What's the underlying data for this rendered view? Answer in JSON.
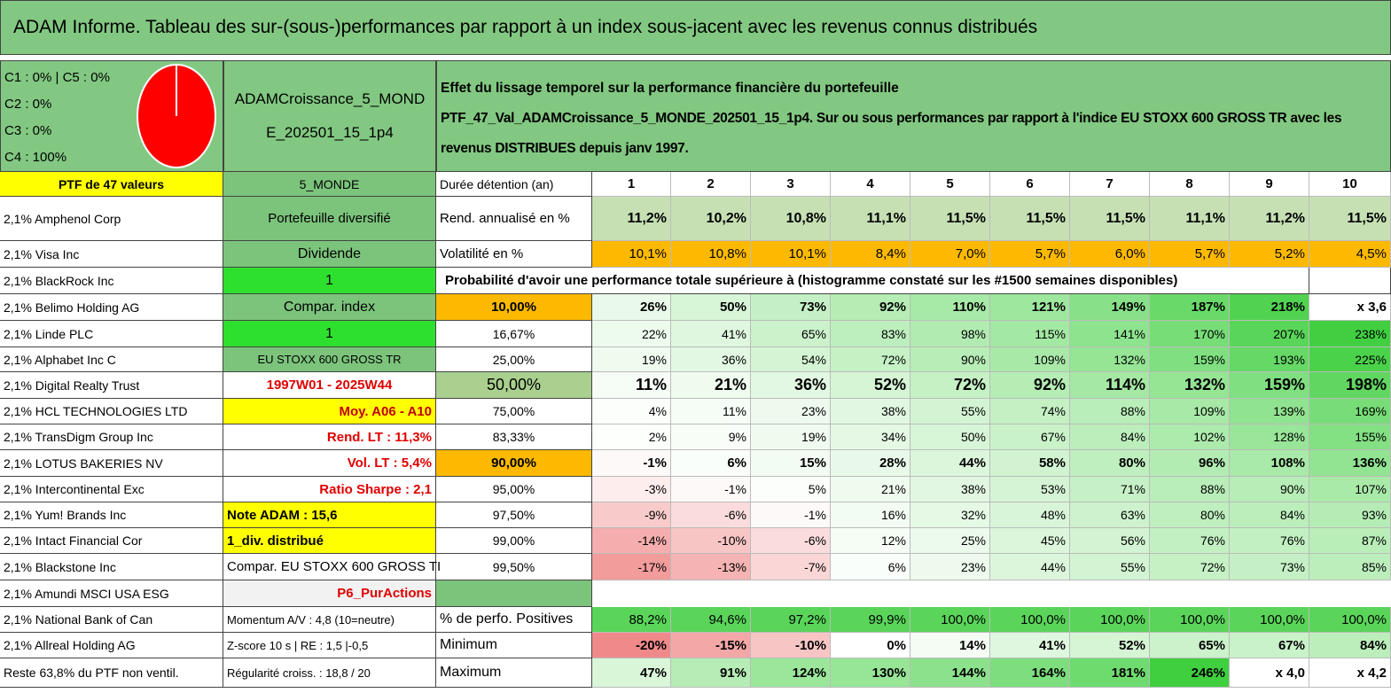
{
  "title": "ADAM Informe. Tableau des sur-(sous-)performances par rapport à un index sous-jacent avec les revenus connus distribués",
  "header": {
    "pie_legend": [
      "C1 : 0% | C5 : 0%",
      "C2 : 0%",
      "C3 : 0%",
      "C4 : 100%"
    ],
    "portfolio": "ADAMCroissance_5_MONDE_202501_15_1p4",
    "heading": "Effet du lissage temporel sur la performance financière du portefeuille",
    "description": "PTF_47_Val_ADAMCroissance_5_MONDE_202501_15_1p4. Sur ou sous performances par rapport à l'indice EU STOXX 600 GROSS TR avec les revenus DISTRIBUES depuis janv 1997."
  },
  "rows": [
    {
      "name": "PTF de 47 valeurs",
      "info": "5_MONDE",
      "label": "Durée détention (an)",
      "values": [
        "1",
        "2",
        "3",
        "4",
        "5",
        "6",
        "7",
        "8",
        "9",
        "10"
      ]
    },
    {
      "name": "2,1% Amphenol Corp",
      "info": "Portefeuille diversifié",
      "label": "Rend. annualisé en %",
      "values": [
        "11,2%",
        "10,2%",
        "10,8%",
        "11,1%",
        "11,5%",
        "11,5%",
        "11,5%",
        "11,1%",
        "11,2%",
        "11,5%"
      ]
    },
    {
      "name": "2,1% Visa Inc",
      "info": "Dividende",
      "label": "Volatilité en %",
      "values": [
        "10,1%",
        "10,8%",
        "10,1%",
        "8,4%",
        "7,0%",
        "5,7%",
        "6,0%",
        "5,7%",
        "5,2%",
        "4,5%"
      ]
    },
    {
      "name": "2,1% BlackRock Inc",
      "info": "1",
      "heading": "Probabilité d'avoir une performance totale supérieure à (histogramme constaté sur les #1500 semaines disponibles)"
    },
    {
      "name": "2,1% Belimo Holding AG",
      "info": "Compar. index",
      "label": "10,00%",
      "values": [
        "26%",
        "50%",
        "73%",
        "92%",
        "110%",
        "121%",
        "149%",
        "187%",
        "218%",
        "x 3,6"
      ]
    },
    {
      "name": "2,1% Linde PLC",
      "info": "1",
      "label": "16,67%",
      "values": [
        "22%",
        "41%",
        "65%",
        "83%",
        "98%",
        "115%",
        "141%",
        "170%",
        "207%",
        "238%"
      ]
    },
    {
      "name": "2,1% Alphabet Inc C",
      "info": "EU STOXX 600 GROSS TR",
      "label": "25,00%",
      "values": [
        "19%",
        "36%",
        "54%",
        "72%",
        "90%",
        "109%",
        "132%",
        "159%",
        "193%",
        "225%"
      ]
    },
    {
      "name": "2,1% Digital Realty Trust",
      "info": "1997W01 - 2025W44",
      "label": "50,00%",
      "values": [
        "11%",
        "21%",
        "36%",
        "52%",
        "72%",
        "92%",
        "114%",
        "132%",
        "159%",
        "198%"
      ]
    },
    {
      "name": "2,1% HCL TECHNOLOGIES LTD",
      "info": "Moy. A06 - A10",
      "label": "75,00%",
      "values": [
        "4%",
        "11%",
        "23%",
        "38%",
        "55%",
        "74%",
        "88%",
        "109%",
        "139%",
        "169%"
      ]
    },
    {
      "name": "2,1% TransDigm Group Inc",
      "info": "Rend. LT : 11,3%",
      "label": "83,33%",
      "values": [
        "2%",
        "9%",
        "19%",
        "34%",
        "50%",
        "67%",
        "84%",
        "102%",
        "128%",
        "155%"
      ]
    },
    {
      "name": "2,1% LOTUS BAKERIES NV",
      "info": "Vol. LT : 5,4%",
      "label": "90,00%",
      "values": [
        "-1%",
        "6%",
        "15%",
        "28%",
        "44%",
        "58%",
        "80%",
        "96%",
        "108%",
        "136%"
      ]
    },
    {
      "name": "2,1% Intercontinental Exc",
      "info": "Ratio Sharpe : 2,1",
      "label": "95,00%",
      "values": [
        "-3%",
        "-1%",
        "5%",
        "21%",
        "38%",
        "53%",
        "71%",
        "88%",
        "90%",
        "107%"
      ]
    },
    {
      "name": "2,1% Yum! Brands Inc",
      "info": "Note ADAM : 15,6",
      "label": "97,50%",
      "values": [
        "-9%",
        "-6%",
        "-1%",
        "16%",
        "32%",
        "48%",
        "63%",
        "80%",
        "84%",
        "93%"
      ]
    },
    {
      "name": "2,1% Intact Financial Cor",
      "info": "1_div. distribué",
      "label": "99,00%",
      "values": [
        "-14%",
        "-10%",
        "-6%",
        "12%",
        "25%",
        "45%",
        "56%",
        "76%",
        "76%",
        "87%"
      ]
    },
    {
      "name": "2,1% Blackstone Inc",
      "info": "Compar. EU STOXX 600 GROSS TI",
      "label": "99,50%",
      "values": [
        "-17%",
        "-13%",
        "-7%",
        "6%",
        "23%",
        "44%",
        "55%",
        "72%",
        "73%",
        "85%"
      ]
    },
    {
      "name": "2,1% Amundi MSCI USA ESG",
      "info": "P6_PurActions"
    },
    {
      "name": "2,1% National Bank of Can",
      "info": "Momentum A/V : 4,8 (10=neutre)",
      "label": "% de perfo. Positives",
      "values": [
        "88,2%",
        "94,6%",
        "97,2%",
        "99,9%",
        "100,0%",
        "100,0%",
        "100,0%",
        "100,0%",
        "100,0%",
        "100,0%"
      ]
    },
    {
      "name": "2,1% Allreal Holding AG",
      "info": "Z-score 10 s | RE : 1,5 |-0,5",
      "label": "Minimum",
      "values": [
        "-20%",
        "-15%",
        "-10%",
        "0%",
        "14%",
        "41%",
        "52%",
        "65%",
        "67%",
        "84%"
      ]
    },
    {
      "name": "Reste 63,8% du PTF non ventil.",
      "info": "Régularité croiss. : 18,8 / 20",
      "label": "Maximum",
      "values": [
        "47%",
        "91%",
        "124%",
        "130%",
        "144%",
        "164%",
        "181%",
        "246%",
        "x 4,0",
        "x 4,2"
      ]
    }
  ]
}
